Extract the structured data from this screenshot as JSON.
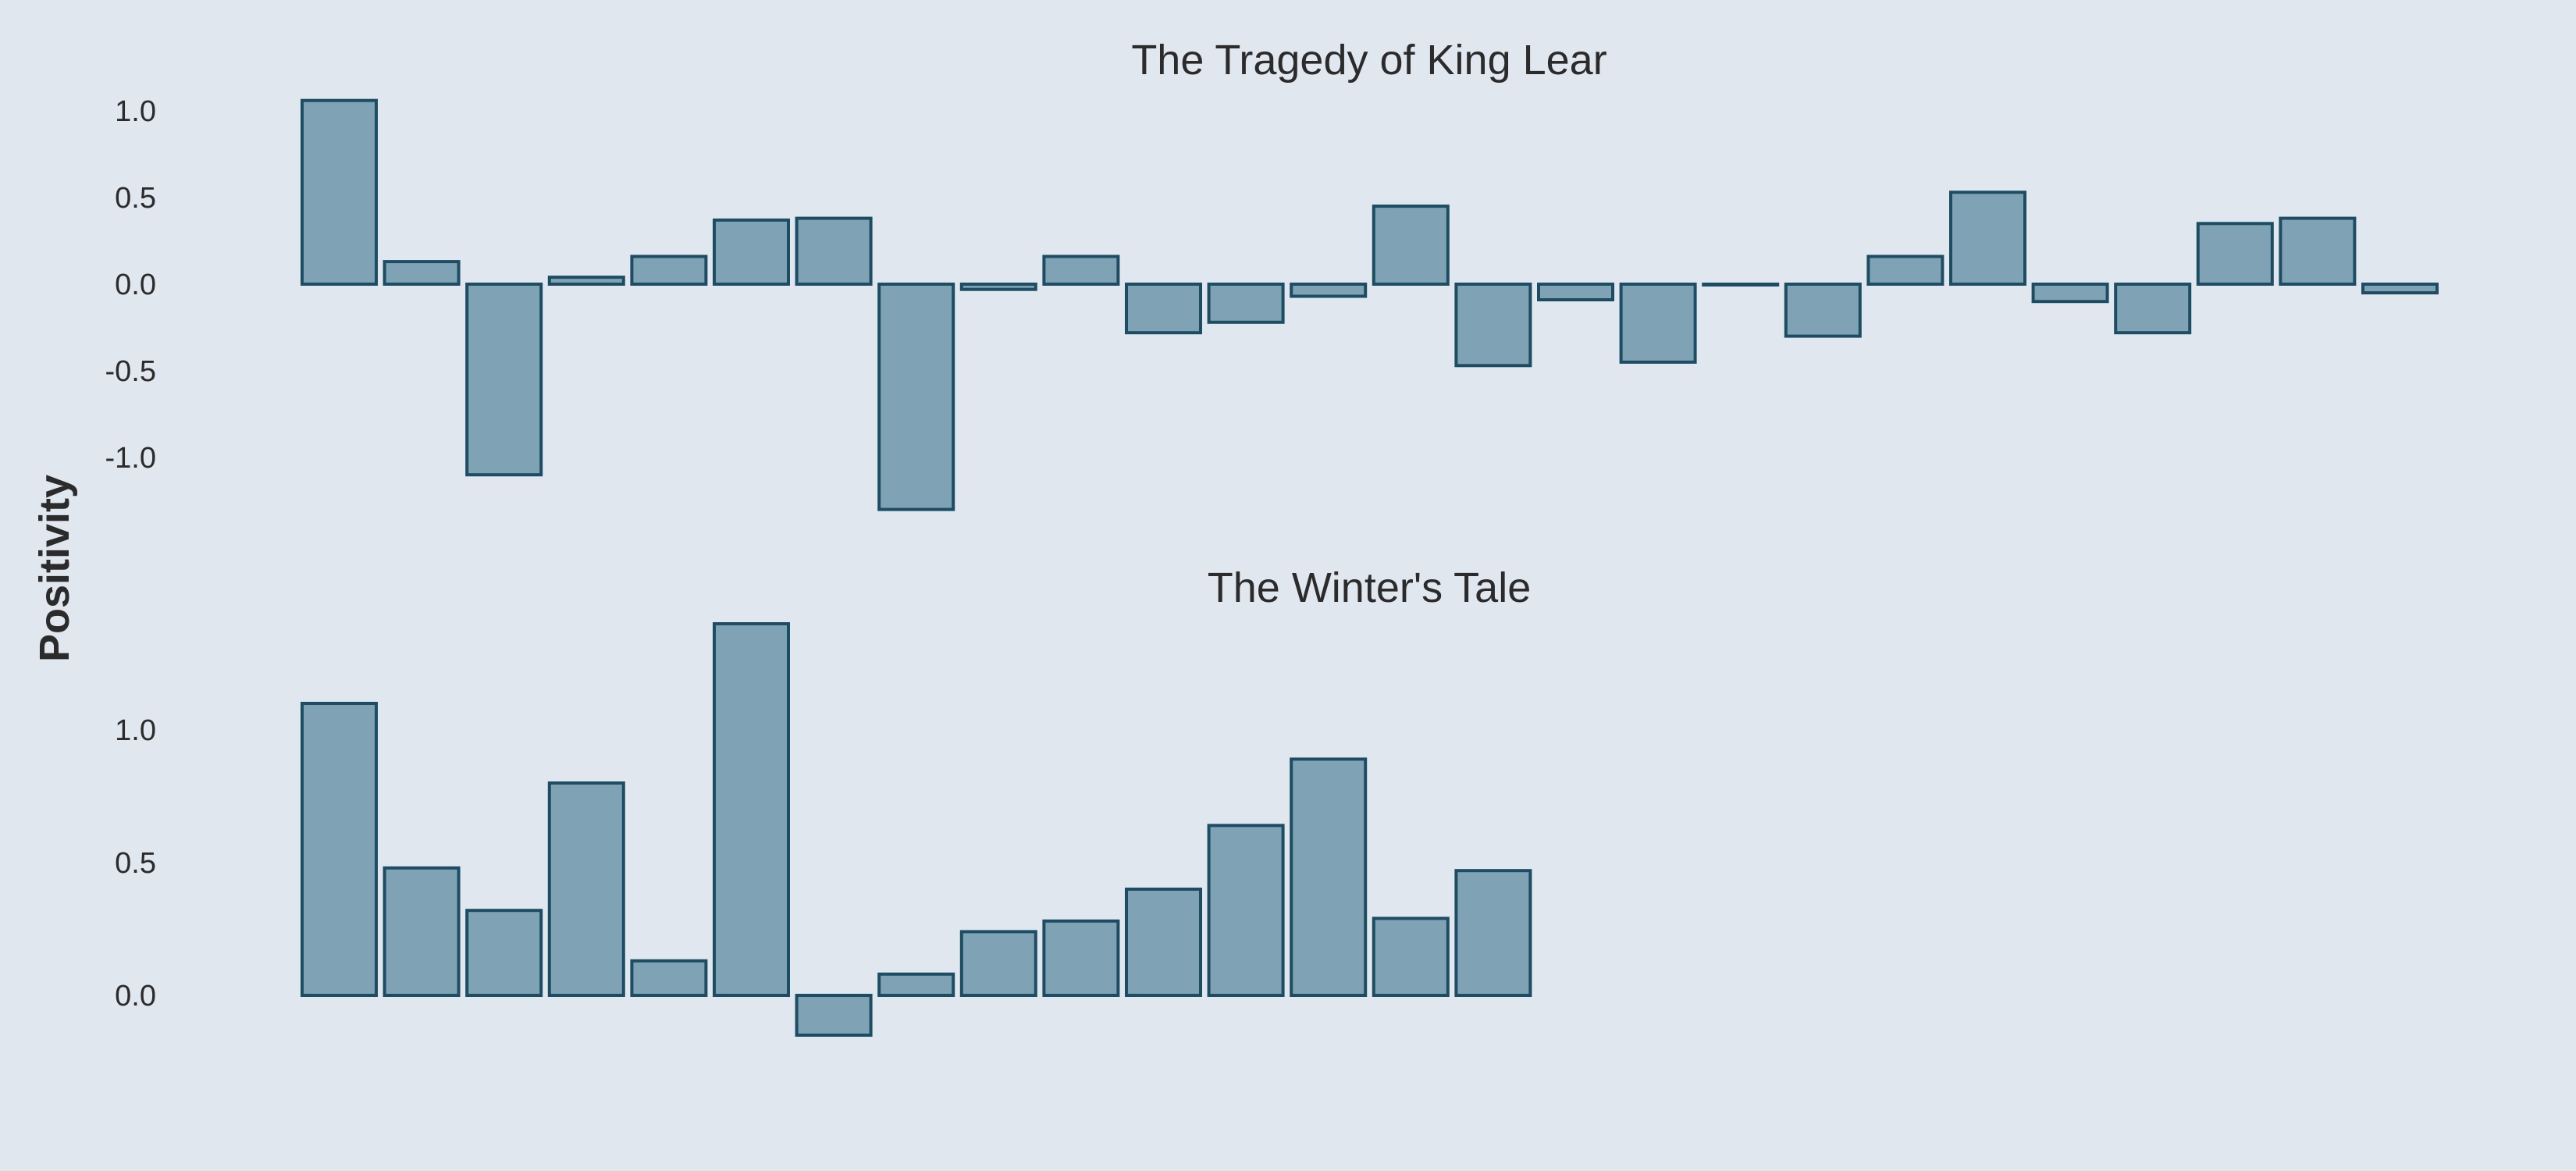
{
  "figure": {
    "ylabel": "Positivity",
    "background": "#e0e7ee",
    "bar_fill": "#7fa3b4",
    "bar_edge": "#1c4d63",
    "text_color": "#2b2b2b"
  },
  "chart_data": [
    {
      "type": "bar",
      "title": "The Tragedy of King Lear",
      "xlabel": "",
      "ylabel": "Positivity",
      "ylim": [
        -1.2,
        1.0
      ],
      "yticks": [
        1.0,
        0.5,
        0.0,
        -0.5,
        -1.0
      ],
      "ytick_labels": [
        "1.0",
        "0.5",
        "0.0",
        "-0.5",
        "-1.0"
      ],
      "grid": false,
      "values": [
        1.06,
        0.13,
        -1.1,
        0.04,
        0.16,
        0.37,
        0.38,
        -1.3,
        -0.03,
        0.16,
        -0.28,
        -0.22,
        -0.07,
        0.45,
        -0.47,
        -0.09,
        -0.45,
        0.0,
        -0.3,
        0.16,
        0.53,
        -0.1,
        -0.28,
        0.35,
        0.38,
        -0.05
      ]
    },
    {
      "type": "bar",
      "title": "The Winter's Tale",
      "xlabel": "",
      "ylabel": "Positivity",
      "ylim": [
        -0.25,
        1.4
      ],
      "yticks": [
        1.0,
        0.5,
        0.0
      ],
      "ytick_labels": [
        "1.0",
        "0.5",
        "0.0"
      ],
      "grid": false,
      "values": [
        1.1,
        0.48,
        0.32,
        0.8,
        0.13,
        1.4,
        -0.15,
        0.08,
        0.24,
        0.28,
        0.4,
        0.64,
        0.89,
        0.29,
        0.47
      ]
    }
  ]
}
